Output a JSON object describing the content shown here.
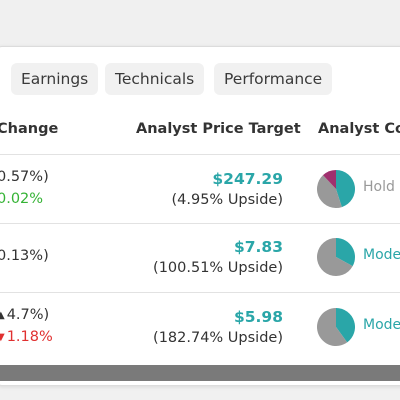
{
  "tabs": [
    {
      "label": "Earnings"
    },
    {
      "label": "Technicals"
    },
    {
      "label": "Performance"
    }
  ],
  "headers": {
    "change": "Change",
    "target": "Analyst Price Target",
    "consensus": "Analyst Co"
  },
  "rows": [
    {
      "change_main": "0.57%)",
      "change_sub": "0.02%",
      "target_price": "$247.29",
      "target_upside": "(4.95% Upside)",
      "consensus": "Hold",
      "consensus_color": "#999999",
      "pie": {
        "teal": 0.45,
        "magenta": 0.12,
        "gray": 0.43
      }
    },
    {
      "change_main": "0.13%)",
      "target_price": "$7.83",
      "target_upside": "(100.51% Upside)",
      "consensus": "Mode",
      "consensus_color": "#2aa6a8",
      "pie": {
        "teal": 0.33,
        "magenta": 0,
        "gray": 0.67
      }
    },
    {
      "change_main": "4.7%)",
      "change_sub": "1.18%",
      "target_price": "$5.98",
      "target_upside": "(182.74% Upside)",
      "consensus": "Mode",
      "consensus_color": "#2aa6a8",
      "pie": {
        "teal": 0.4,
        "magenta": 0,
        "gray": 0.6
      }
    }
  ],
  "colors": {
    "teal": "#2aa6a8",
    "magenta": "#a0306e",
    "gray": "#999999",
    "green": "#35b335",
    "red": "#e03030"
  }
}
